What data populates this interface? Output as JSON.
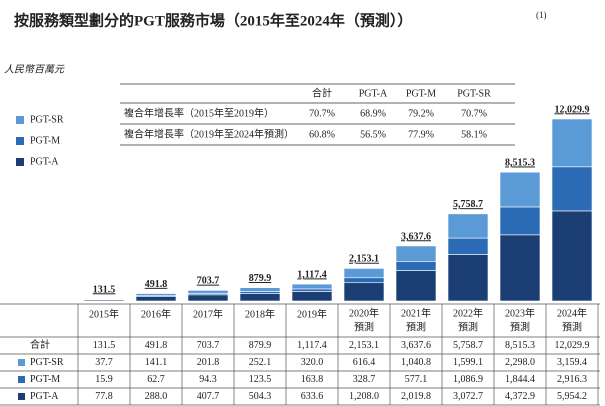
{
  "chart_data": {
    "type": "bar",
    "stacked": true,
    "title": "按服務類型劃分的PGT服務市場（2015年至2024年（預測））",
    "title_note": "(1)",
    "unit": "人民幣百萬元",
    "categories": [
      [
        "2015年"
      ],
      [
        "2016年"
      ],
      [
        "2017年"
      ],
      [
        "2018年"
      ],
      [
        "2019年"
      ],
      [
        "2020年",
        "預測"
      ],
      [
        "2021年",
        "預測"
      ],
      [
        "2022年",
        "預測"
      ],
      [
        "2023年",
        "預測"
      ],
      [
        "2024年",
        "預測"
      ]
    ],
    "series": [
      {
        "name": "PGT-SR",
        "color": "#5a9ad6",
        "values": [
          37.7,
          141.1,
          201.8,
          252.1,
          320.0,
          616.4,
          1040.8,
          1599.1,
          2298.0,
          3159.4
        ],
        "value_labels": [
          "37.7",
          "141.1",
          "201.8",
          "252.1",
          "320.0",
          "616.4",
          "1,040.8",
          "1,599.1",
          "2,298.0",
          "3,159.4"
        ]
      },
      {
        "name": "PGT-M",
        "color": "#2b6bb5",
        "values": [
          15.9,
          62.7,
          94.3,
          123.5,
          163.8,
          328.7,
          577.1,
          1086.9,
          1844.4,
          2916.3
        ],
        "value_labels": [
          "15.9",
          "62.7",
          "94.3",
          "123.5",
          "163.8",
          "328.7",
          "577.1",
          "1,086.9",
          "1,844.4",
          "2,916.3"
        ]
      },
      {
        "name": "PGT-A",
        "color": "#1b3f75",
        "values": [
          77.8,
          288.0,
          407.7,
          504.3,
          633.6,
          1208.0,
          2019.8,
          3072.7,
          4372.9,
          5954.2
        ],
        "value_labels": [
          "77.8",
          "288.0",
          "407.7",
          "504.3",
          "633.6",
          "1,208.0",
          "2,019.8",
          "3,072.7",
          "4,372.9",
          "5,954.2"
        ]
      }
    ],
    "totals": {
      "name": "合計",
      "values": [
        131.5,
        491.8,
        703.7,
        879.9,
        1117.4,
        2153.1,
        3637.6,
        5758.7,
        8515.3,
        12029.9
      ],
      "value_labels": [
        "131.5",
        "491.8",
        "703.7",
        "879.9",
        "1,117.4",
        "2,153.1",
        "3,637.6",
        "5,758.7",
        "8,515.3",
        "12,029.9"
      ]
    },
    "cagr_table": {
      "header": [
        "合計",
        "PGT-A",
        "PGT-M",
        "PGT-SR"
      ],
      "rows": [
        {
          "label": "複合年增長率（2015年至2019年）",
          "values": [
            70.7,
            68.9,
            79.2,
            70.7
          ],
          "value_labels": [
            "70.7%",
            "68.9%",
            "79.2%",
            "70.7%"
          ]
        },
        {
          "label": "複合年增長率（2019年至2024年預測）",
          "values": [
            60.8,
            56.5,
            77.9,
            58.1
          ],
          "value_labels": [
            "60.8%",
            "56.5%",
            "77.9%",
            "58.1%"
          ]
        }
      ]
    }
  }
}
